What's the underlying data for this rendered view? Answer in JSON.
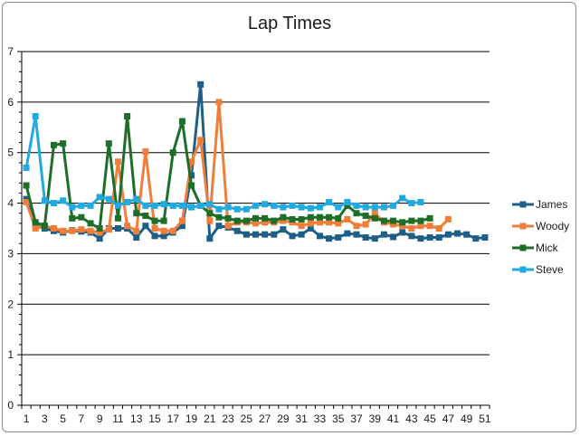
{
  "chart_data": {
    "type": "line",
    "title": "Lap Times",
    "xlabel": "",
    "ylabel": "",
    "ylim": [
      0,
      7
    ],
    "xlim": [
      1,
      51
    ],
    "y_ticks": [
      0,
      1,
      2,
      3,
      4,
      5,
      6,
      7
    ],
    "x_ticks": [
      1,
      3,
      5,
      7,
      9,
      11,
      13,
      15,
      17,
      19,
      21,
      23,
      25,
      27,
      29,
      31,
      33,
      35,
      37,
      39,
      41,
      43,
      45,
      47,
      49,
      51
    ],
    "grid": "horizontal",
    "legend_position": "right",
    "markers": "square",
    "series": [
      {
        "name": "James",
        "color": "#1f5f87",
        "values": [
          4.08,
          3.55,
          3.5,
          3.45,
          3.42,
          3.46,
          3.44,
          3.42,
          3.3,
          3.5,
          3.5,
          3.5,
          3.32,
          3.55,
          3.35,
          3.35,
          3.42,
          3.55,
          4.55,
          6.35,
          3.3,
          3.55,
          3.52,
          3.45,
          3.38,
          3.38,
          3.38,
          3.38,
          3.48,
          3.35,
          3.38,
          3.5,
          3.35,
          3.3,
          3.32,
          3.4,
          3.38,
          3.32,
          3.3,
          3.38,
          3.33,
          3.42,
          3.35,
          3.3,
          3.32,
          3.32,
          3.38,
          3.4,
          3.38,
          3.3,
          3.32
        ]
      },
      {
        "name": "Woody",
        "color": "#f07e3b",
        "values": [
          4.02,
          3.5,
          3.55,
          3.5,
          3.45,
          3.45,
          3.48,
          3.45,
          3.42,
          3.48,
          4.82,
          3.55,
          3.45,
          5.02,
          3.5,
          3.45,
          3.45,
          3.65,
          4.82,
          5.25,
          3.65,
          6.0,
          3.55,
          3.62,
          3.62,
          3.6,
          3.62,
          3.62,
          3.65,
          3.62,
          3.55,
          3.6,
          3.62,
          3.62,
          3.6,
          3.68,
          3.55,
          3.58,
          3.8,
          3.62,
          3.58,
          3.55,
          3.5,
          3.55,
          3.55,
          3.5,
          3.68
        ]
      },
      {
        "name": "Mick",
        "color": "#1e6e2a",
        "values": [
          4.35,
          3.62,
          3.55,
          5.15,
          5.18,
          3.7,
          3.72,
          3.6,
          3.5,
          5.18,
          3.7,
          5.72,
          3.8,
          3.75,
          3.65,
          3.65,
          5.0,
          5.62,
          4.35,
          3.95,
          3.8,
          3.72,
          3.7,
          3.65,
          3.65,
          3.7,
          3.7,
          3.65,
          3.72,
          3.68,
          3.68,
          3.72,
          3.72,
          3.72,
          3.7,
          3.95,
          3.8,
          3.75,
          3.7,
          3.65,
          3.65,
          3.62,
          3.65,
          3.65,
          3.7
        ]
      },
      {
        "name": "Steve",
        "color": "#22a9e0",
        "values": [
          4.7,
          5.72,
          4.05,
          4.0,
          4.05,
          3.92,
          3.95,
          3.95,
          4.12,
          4.08,
          3.95,
          4.02,
          4.08,
          3.95,
          3.95,
          3.98,
          3.95,
          3.95,
          3.92,
          3.95,
          3.98,
          3.88,
          3.92,
          3.88,
          3.88,
          3.95,
          3.98,
          3.95,
          3.92,
          3.95,
          3.92,
          3.9,
          3.92,
          4.02,
          3.92,
          4.02,
          3.95,
          3.92,
          3.92,
          3.92,
          3.95,
          4.1,
          4.0,
          4.02
        ]
      }
    ]
  }
}
